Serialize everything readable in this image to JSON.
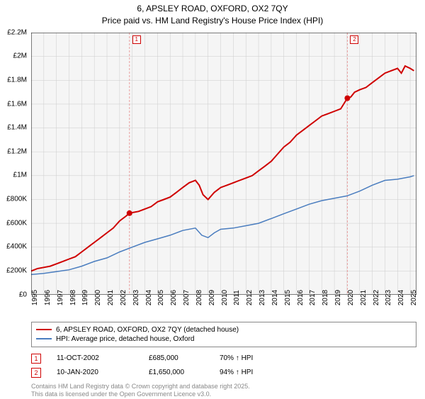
{
  "title": {
    "line1": "6, APSLEY ROAD, OXFORD, OX2 7QY",
    "line2": "Price paid vs. HM Land Registry's House Price Index (HPI)"
  },
  "chart": {
    "type": "line",
    "background_color": "#f5f5f5",
    "grid_color": "#cccccc",
    "axis_color": "#000000",
    "y_axis": {
      "min": 0,
      "max": 2200000,
      "ticks": [
        0,
        200000,
        400000,
        600000,
        800000,
        1000000,
        1200000,
        1400000,
        1600000,
        1800000,
        2000000,
        2200000
      ],
      "labels": [
        "£0",
        "£200K",
        "£400K",
        "£600K",
        "£800K",
        "£1M",
        "£1.2M",
        "£1.4M",
        "£1.6M",
        "£1.8M",
        "£2M",
        "£2.2M"
      ]
    },
    "x_axis": {
      "min": 1995,
      "max": 2025.5,
      "ticks": [
        1995,
        1996,
        1997,
        1998,
        1999,
        2000,
        2001,
        2002,
        2003,
        2004,
        2005,
        2006,
        2007,
        2008,
        2009,
        2010,
        2011,
        2012,
        2013,
        2014,
        2015,
        2016,
        2017,
        2018,
        2019,
        2020,
        2021,
        2022,
        2023,
        2024,
        2025
      ]
    },
    "series": [
      {
        "name": "price_paid",
        "color": "#cf0000",
        "line_width": 2,
        "points": [
          [
            1995,
            200000
          ],
          [
            1995.5,
            220000
          ],
          [
            1996,
            230000
          ],
          [
            1996.5,
            240000
          ],
          [
            1997,
            260000
          ],
          [
            1997.5,
            280000
          ],
          [
            1998,
            300000
          ],
          [
            1998.5,
            320000
          ],
          [
            1999,
            360000
          ],
          [
            1999.5,
            400000
          ],
          [
            2000,
            440000
          ],
          [
            2000.5,
            480000
          ],
          [
            2001,
            520000
          ],
          [
            2001.5,
            560000
          ],
          [
            2002,
            620000
          ],
          [
            2002.5,
            660000
          ],
          [
            2002.78,
            685000
          ],
          [
            2003,
            690000
          ],
          [
            2003.5,
            700000
          ],
          [
            2004,
            720000
          ],
          [
            2004.5,
            740000
          ],
          [
            2005,
            780000
          ],
          [
            2005.5,
            800000
          ],
          [
            2006,
            820000
          ],
          [
            2006.5,
            860000
          ],
          [
            2007,
            900000
          ],
          [
            2007.5,
            940000
          ],
          [
            2008,
            960000
          ],
          [
            2008.3,
            920000
          ],
          [
            2008.6,
            840000
          ],
          [
            2009,
            800000
          ],
          [
            2009.5,
            860000
          ],
          [
            2010,
            900000
          ],
          [
            2010.5,
            920000
          ],
          [
            2011,
            940000
          ],
          [
            2011.5,
            960000
          ],
          [
            2012,
            980000
          ],
          [
            2012.5,
            1000000
          ],
          [
            2013,
            1040000
          ],
          [
            2013.5,
            1080000
          ],
          [
            2014,
            1120000
          ],
          [
            2014.5,
            1180000
          ],
          [
            2015,
            1240000
          ],
          [
            2015.5,
            1280000
          ],
          [
            2016,
            1340000
          ],
          [
            2016.5,
            1380000
          ],
          [
            2017,
            1420000
          ],
          [
            2017.5,
            1460000
          ],
          [
            2018,
            1500000
          ],
          [
            2018.5,
            1520000
          ],
          [
            2019,
            1540000
          ],
          [
            2019.5,
            1560000
          ],
          [
            2020.03,
            1650000
          ],
          [
            2020.3,
            1660000
          ],
          [
            2020.6,
            1700000
          ],
          [
            2021,
            1720000
          ],
          [
            2021.5,
            1740000
          ],
          [
            2022,
            1780000
          ],
          [
            2022.5,
            1820000
          ],
          [
            2023,
            1860000
          ],
          [
            2023.5,
            1880000
          ],
          [
            2024,
            1900000
          ],
          [
            2024.3,
            1860000
          ],
          [
            2024.6,
            1920000
          ],
          [
            2025,
            1900000
          ],
          [
            2025.3,
            1880000
          ]
        ]
      },
      {
        "name": "hpi",
        "color": "#4a7dbf",
        "line_width": 1.5,
        "points": [
          [
            1995,
            170000
          ],
          [
            1996,
            180000
          ],
          [
            1997,
            195000
          ],
          [
            1998,
            210000
          ],
          [
            1999,
            240000
          ],
          [
            2000,
            280000
          ],
          [
            2001,
            310000
          ],
          [
            2002,
            360000
          ],
          [
            2003,
            400000
          ],
          [
            2004,
            440000
          ],
          [
            2005,
            470000
          ],
          [
            2006,
            500000
          ],
          [
            2007,
            540000
          ],
          [
            2008,
            560000
          ],
          [
            2008.5,
            500000
          ],
          [
            2009,
            480000
          ],
          [
            2009.5,
            520000
          ],
          [
            2010,
            550000
          ],
          [
            2011,
            560000
          ],
          [
            2012,
            580000
          ],
          [
            2013,
            600000
          ],
          [
            2014,
            640000
          ],
          [
            2015,
            680000
          ],
          [
            2016,
            720000
          ],
          [
            2017,
            760000
          ],
          [
            2018,
            790000
          ],
          [
            2019,
            810000
          ],
          [
            2020,
            830000
          ],
          [
            2021,
            870000
          ],
          [
            2022,
            920000
          ],
          [
            2023,
            960000
          ],
          [
            2024,
            970000
          ],
          [
            2025,
            990000
          ],
          [
            2025.3,
            1000000
          ]
        ]
      }
    ],
    "transaction_markers": [
      {
        "id": "1",
        "x": 2002.78,
        "y": 685000,
        "color": "#cf0000",
        "line_color": "#e8a0a0"
      },
      {
        "id": "2",
        "x": 2020.03,
        "y": 1650000,
        "color": "#cf0000",
        "line_color": "#e8a0a0"
      }
    ]
  },
  "legend": {
    "items": [
      {
        "color": "#cf0000",
        "width": 2,
        "label": "6, APSLEY ROAD, OXFORD, OX2 7QY (detached house)"
      },
      {
        "color": "#4a7dbf",
        "width": 1.5,
        "label": "HPI: Average price, detached house, Oxford"
      }
    ]
  },
  "transactions": [
    {
      "id": "1",
      "marker_color": "#cf0000",
      "date": "11-OCT-2002",
      "price": "£685,000",
      "hpi": "70% ↑ HPI"
    },
    {
      "id": "2",
      "marker_color": "#cf0000",
      "date": "10-JAN-2020",
      "price": "£1,650,000",
      "hpi": "94% ↑ HPI"
    }
  ],
  "footer": {
    "line1": "Contains HM Land Registry data © Crown copyright and database right 2025.",
    "line2": "This data is licensed under the Open Government Licence v3.0."
  }
}
